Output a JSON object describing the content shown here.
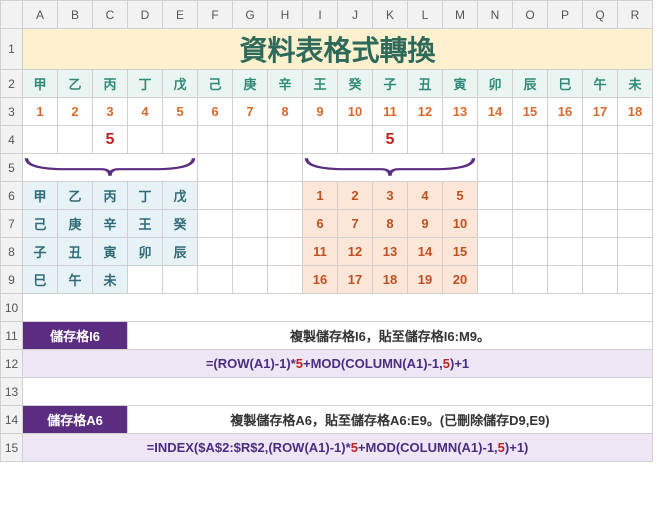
{
  "cols": [
    "A",
    "B",
    "C",
    "D",
    "E",
    "F",
    "G",
    "H",
    "I",
    "J",
    "K",
    "L",
    "M",
    "N",
    "O",
    "P",
    "Q",
    "R"
  ],
  "title": "資料表格式轉換",
  "heavenly": [
    "甲",
    "乙",
    "丙",
    "丁",
    "戊",
    "己",
    "庚",
    "辛",
    "王",
    "癸",
    "子",
    "丑",
    "寅",
    "卯",
    "辰",
    "巳",
    "午",
    "未"
  ],
  "nums": [
    "1",
    "2",
    "3",
    "4",
    "5",
    "6",
    "7",
    "8",
    "9",
    "10",
    "11",
    "12",
    "13",
    "14",
    "15",
    "16",
    "17",
    "18"
  ],
  "five": "5",
  "tblA": [
    [
      "甲",
      "乙",
      "丙",
      "丁",
      "戊"
    ],
    [
      "己",
      "庚",
      "辛",
      "王",
      "癸"
    ],
    [
      "子",
      "丑",
      "寅",
      "卯",
      "辰"
    ],
    [
      "巳",
      "午",
      "未",
      "",
      ""
    ]
  ],
  "tblB": [
    [
      "1",
      "2",
      "3",
      "4",
      "5"
    ],
    [
      "6",
      "7",
      "8",
      "9",
      "10"
    ],
    [
      "11",
      "12",
      "13",
      "14",
      "15"
    ],
    [
      "16",
      "17",
      "18",
      "19",
      "20"
    ]
  ],
  "label1": "儲存格I6",
  "desc1": "複製儲存格I6，貼至儲存格I6:M9。",
  "formula1_pre": "=(ROW(A1)-1)*",
  "formula1_mid": "+MOD(COLUMN(A1)-1,",
  "formula1_end": ")+1",
  "label2": "儲存格A6",
  "desc2": "複製儲存格A6，貼至儲存格A6:E9。(已刪除儲存D9,E9)",
  "formula2_pre": "=INDEX($A$2:$R$2,(ROW(A1)-1)*",
  "formula2_mid": "+MOD(COLUMN(A1)-1,",
  "formula2_end": ")+1)",
  "colors": {
    "title_bg": "#fdf0cf",
    "title_fg": "#2e6a5a",
    "hdr_bg": "#eaf5f2",
    "hdr_fg": "#2e8a78",
    "num_fg": "#d86a2e",
    "tblA_bg": "#e6f2f5",
    "tblB_bg": "#fce6d8",
    "btn_bg": "#5a2d82",
    "formula_bg": "#efe6f5",
    "red": "#c02020"
  }
}
